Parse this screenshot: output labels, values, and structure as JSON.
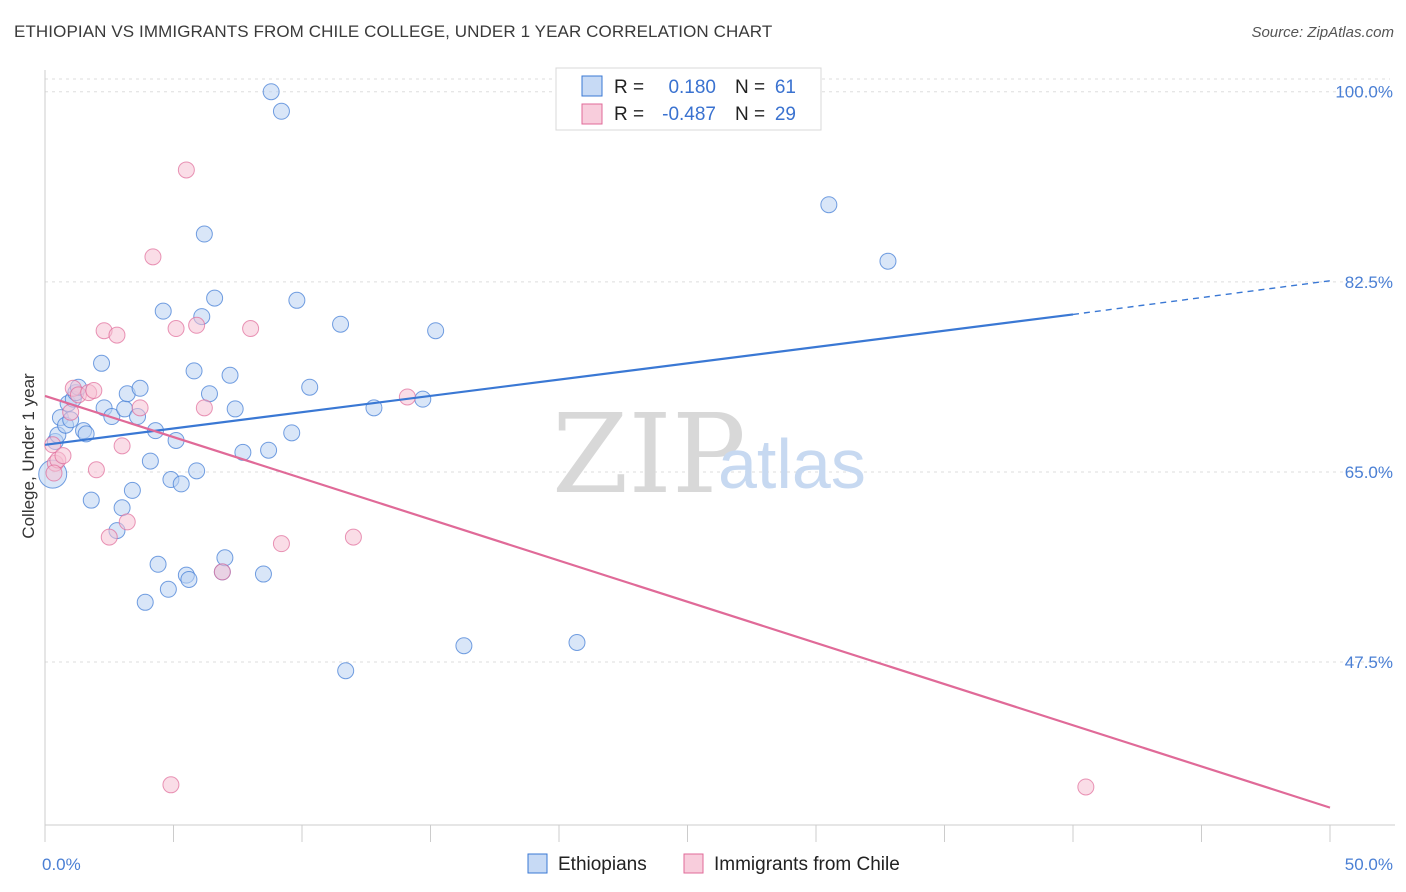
{
  "title": "ETHIOPIAN VS IMMIGRANTS FROM CHILE COLLEGE, UNDER 1 YEAR CORRELATION CHART",
  "source": "Source: ZipAtlas.com",
  "watermark": {
    "zip": "ZIP",
    "atlas": "atlas"
  },
  "colors": {
    "blue": "#3a78d4",
    "blue_fill": "#b9d1f2",
    "pink": "#e06a98",
    "pink_fill": "#f6c1d3",
    "tick": "#4a7fd4",
    "grid": "#dddddd"
  },
  "legend": {
    "rows": [
      {
        "r_label": "R =",
        "r_value": "0.180",
        "n_label": "N =",
        "n_value": "61"
      },
      {
        "r_label": "R =",
        "r_value": "-0.487",
        "n_label": "N =",
        "n_value": "29"
      }
    ]
  },
  "chart_data": {
    "type": "scatter",
    "title": "ETHIOPIAN VS IMMIGRANTS FROM CHILE COLLEGE, UNDER 1 YEAR CORRELATION CHART",
    "xlabel": "",
    "ylabel": "College, Under 1 year",
    "xlim": [
      0,
      50
    ],
    "ylim": [
      32.5,
      102
    ],
    "x_ticks": [
      0,
      50
    ],
    "x_tick_labels": [
      "0.0%",
      "50.0%"
    ],
    "y_ticks": [
      47.5,
      65.0,
      82.5,
      100.0
    ],
    "y_tick_labels": [
      "47.5%",
      "65.0%",
      "82.5%",
      "100.0%"
    ],
    "grid": true,
    "legend_position": "top-center",
    "series": [
      {
        "name": "Ethiopians",
        "color": "#3a78d4",
        "trend": {
          "x": [
            0,
            40
          ],
          "y": [
            67.5,
            79.5
          ],
          "dashed_to": [
            50,
            82.6
          ]
        },
        "points": [
          [
            0.3,
            64.8
          ],
          [
            0.4,
            67.8
          ],
          [
            0.5,
            68.4
          ],
          [
            0.6,
            70.0
          ],
          [
            0.8,
            69.3
          ],
          [
            0.9,
            71.3
          ],
          [
            1.0,
            69.8
          ],
          [
            1.1,
            71.7
          ],
          [
            1.2,
            72.3
          ],
          [
            1.3,
            72.8
          ],
          [
            1.5,
            68.8
          ],
          [
            1.6,
            68.5
          ],
          [
            1.8,
            62.4
          ],
          [
            2.2,
            75.0
          ],
          [
            2.3,
            70.9
          ],
          [
            2.6,
            70.1
          ],
          [
            2.8,
            59.6
          ],
          [
            3.0,
            61.7
          ],
          [
            3.1,
            70.8
          ],
          [
            3.2,
            72.2
          ],
          [
            3.4,
            63.3
          ],
          [
            3.6,
            70.1
          ],
          [
            3.7,
            72.7
          ],
          [
            3.9,
            53.0
          ],
          [
            4.1,
            66.0
          ],
          [
            4.3,
            68.8
          ],
          [
            4.4,
            56.5
          ],
          [
            4.6,
            79.8
          ],
          [
            4.8,
            54.2
          ],
          [
            4.9,
            64.3
          ],
          [
            5.1,
            67.9
          ],
          [
            5.3,
            63.9
          ],
          [
            5.5,
            55.5
          ],
          [
            5.6,
            55.1
          ],
          [
            5.8,
            74.3
          ],
          [
            5.9,
            65.1
          ],
          [
            6.1,
            79.3
          ],
          [
            6.2,
            86.9
          ],
          [
            6.4,
            72.2
          ],
          [
            6.6,
            81.0
          ],
          [
            6.9,
            55.8
          ],
          [
            7.0,
            57.1
          ],
          [
            7.2,
            73.9
          ],
          [
            7.4,
            70.8
          ],
          [
            7.7,
            66.8
          ],
          [
            8.5,
            55.6
          ],
          [
            8.7,
            67.0
          ],
          [
            8.8,
            100.0
          ],
          [
            9.2,
            98.2
          ],
          [
            9.6,
            68.6
          ],
          [
            9.8,
            80.8
          ],
          [
            10.3,
            72.8
          ],
          [
            11.5,
            78.6
          ],
          [
            11.7,
            46.7
          ],
          [
            12.8,
            70.9
          ],
          [
            14.7,
            71.7
          ],
          [
            15.2,
            78.0
          ],
          [
            16.3,
            49.0
          ],
          [
            20.7,
            49.3
          ],
          [
            30.5,
            89.6
          ],
          [
            32.8,
            84.4
          ]
        ]
      },
      {
        "name": "Immigrants from Chile",
        "color": "#e06a98",
        "trend": {
          "x": [
            0,
            50
          ],
          "y": [
            72.0,
            34.1
          ]
        },
        "points": [
          [
            0.3,
            67.5
          ],
          [
            0.4,
            65.8
          ],
          [
            0.5,
            66.1
          ],
          [
            0.7,
            66.5
          ],
          [
            1.0,
            70.5
          ],
          [
            1.1,
            72.7
          ],
          [
            1.3,
            72.1
          ],
          [
            1.7,
            72.3
          ],
          [
            1.9,
            72.5
          ],
          [
            2.0,
            65.2
          ],
          [
            2.3,
            78.0
          ],
          [
            2.5,
            59.0
          ],
          [
            2.8,
            77.6
          ],
          [
            3.0,
            67.4
          ],
          [
            3.2,
            60.4
          ],
          [
            3.7,
            70.9
          ],
          [
            4.2,
            84.8
          ],
          [
            4.9,
            36.2
          ],
          [
            5.1,
            78.2
          ],
          [
            5.5,
            92.8
          ],
          [
            5.9,
            78.5
          ],
          [
            6.2,
            70.9
          ],
          [
            6.9,
            55.8
          ],
          [
            8.0,
            78.2
          ],
          [
            9.2,
            58.4
          ],
          [
            12.0,
            59.0
          ],
          [
            14.1,
            71.9
          ],
          [
            40.5,
            36.0
          ],
          [
            0.35,
            64.9
          ]
        ]
      }
    ]
  },
  "bottom_legend": [
    "Ethiopians",
    "Immigrants from Chile"
  ]
}
